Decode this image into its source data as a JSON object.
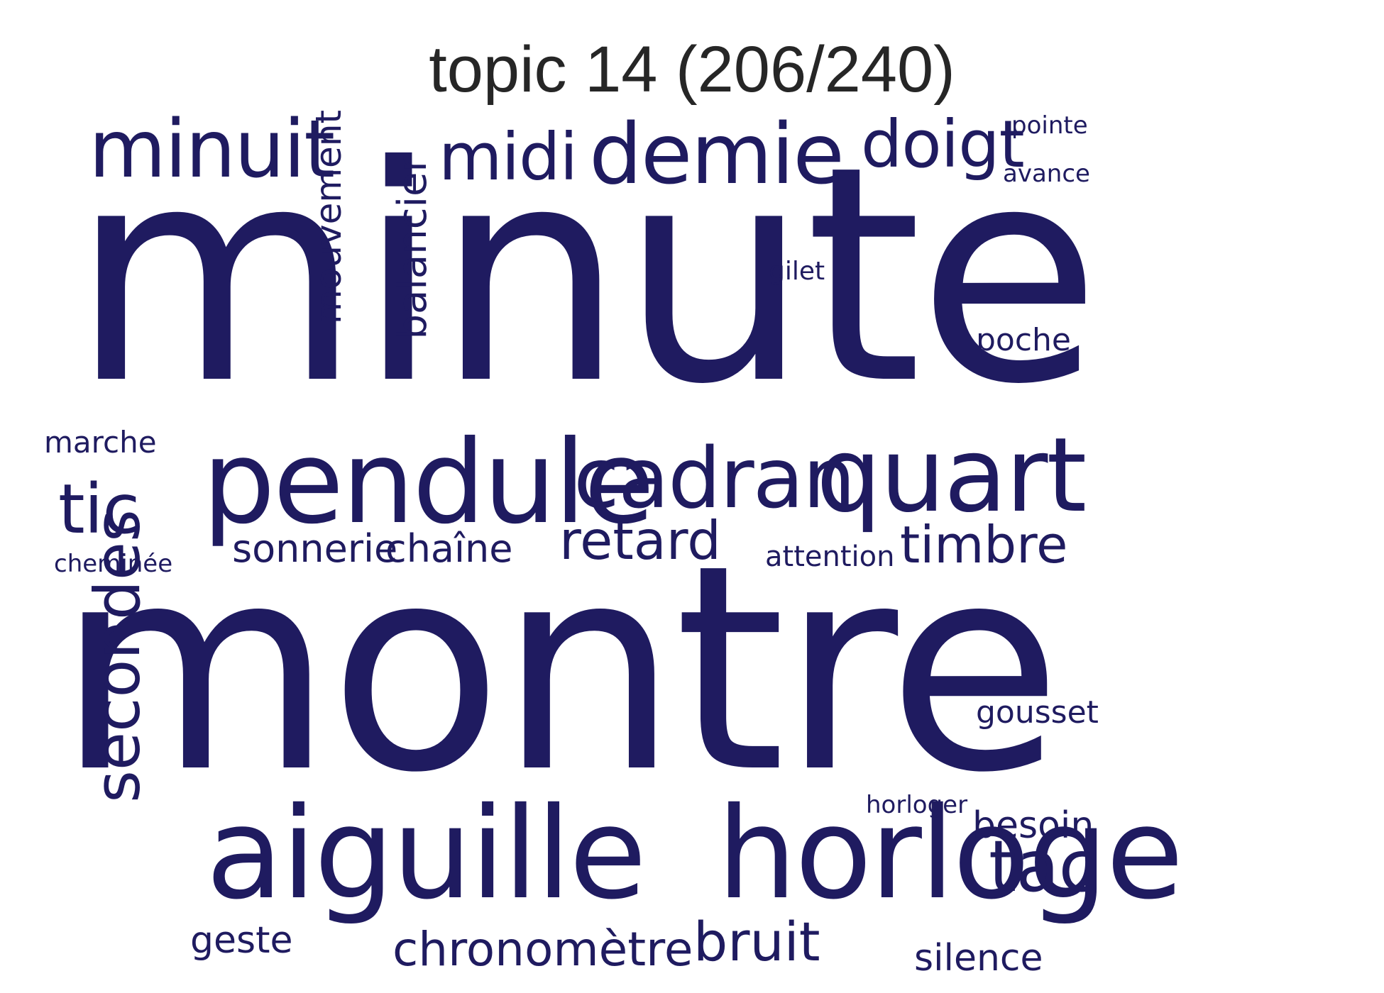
{
  "title": "topic 14 (206/240)",
  "word_color": "#1f1b60",
  "title_color": "#262626",
  "words": [
    {
      "key": "minute",
      "text": "minute"
    },
    {
      "key": "montre",
      "text": "montre"
    },
    {
      "key": "aiguille",
      "text": "aiguille"
    },
    {
      "key": "horloge",
      "text": "horloge"
    },
    {
      "key": "pendule",
      "text": "pendule"
    },
    {
      "key": "quart",
      "text": "quart"
    },
    {
      "key": "cadran",
      "text": "cadran"
    },
    {
      "key": "demie",
      "text": "demie"
    },
    {
      "key": "minuit",
      "text": "minuit"
    },
    {
      "key": "doigt",
      "text": "doigt"
    },
    {
      "key": "midi",
      "text": "midi"
    },
    {
      "key": "secondes",
      "text": "secondes"
    },
    {
      "key": "tac",
      "text": "tac"
    },
    {
      "key": "tic",
      "text": "tic"
    },
    {
      "key": "retard",
      "text": "retard"
    },
    {
      "key": "timbre",
      "text": "timbre"
    },
    {
      "key": "mouvement",
      "text": "mouvement"
    },
    {
      "key": "balancier",
      "text": "balancier"
    },
    {
      "key": "chronometre",
      "text": "chronomètre"
    },
    {
      "key": "bruit",
      "text": "bruit"
    },
    {
      "key": "sonnerie",
      "text": "sonnerie"
    },
    {
      "key": "chaine",
      "text": "chaîne"
    },
    {
      "key": "besoin",
      "text": "besoin"
    },
    {
      "key": "silence",
      "text": "silence"
    },
    {
      "key": "geste",
      "text": "geste"
    },
    {
      "key": "gousset",
      "text": "gousset"
    },
    {
      "key": "poche",
      "text": "poche"
    },
    {
      "key": "marche",
      "text": "marche"
    },
    {
      "key": "attention",
      "text": "attention"
    },
    {
      "key": "pointe",
      "text": "pointe"
    },
    {
      "key": "avance",
      "text": "avance"
    },
    {
      "key": "horloger",
      "text": "horloger"
    },
    {
      "key": "gilet",
      "text": "gilet"
    },
    {
      "key": "cheminee",
      "text": "cheminée"
    }
  ]
}
